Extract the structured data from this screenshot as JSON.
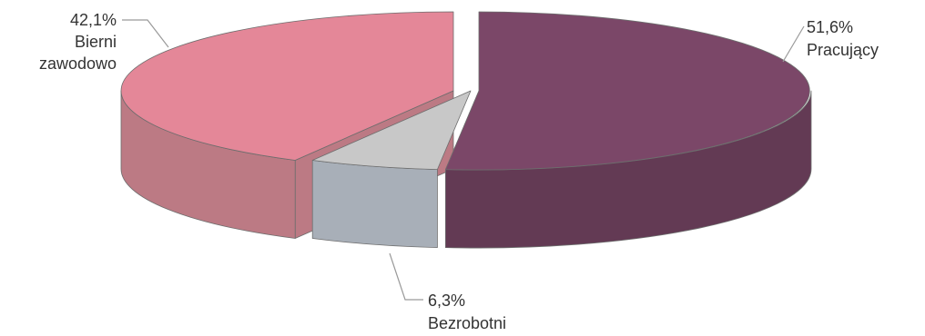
{
  "chart_data": {
    "type": "pie",
    "title": "",
    "series": [
      {
        "slices": [
          {
            "label": "Pracujący",
            "value": 51.6,
            "value_label": "51,6%",
            "color": "#7b4768",
            "side_color": "#633a54",
            "exploded": false
          },
          {
            "label": "Bezrobotni",
            "value": 6.3,
            "value_label": "6,3%",
            "color": "#c8c8c8",
            "side_color": "#a8afb8",
            "exploded": true
          },
          {
            "label": "Bierni zawodowo",
            "value": 42.1,
            "value_label": "42,1%",
            "color": "#e48798",
            "side_color": "#bc7a84",
            "exploded": true
          }
        ]
      }
    ],
    "style": "3d-exploded",
    "legend": "none",
    "labels": "outside-with-leader-lines"
  }
}
